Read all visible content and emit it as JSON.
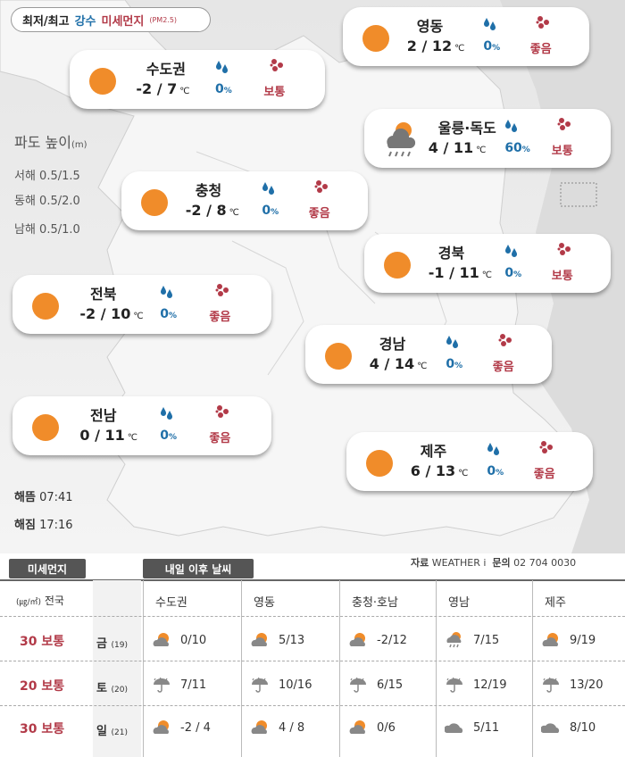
{
  "legend": {
    "temp": "최저/최고",
    "rain": "강수",
    "dust": "미세먼지",
    "pm": "(PM2.5)"
  },
  "colors": {
    "sun": "#f08c2a",
    "rain": "#1f6fa8",
    "dust": "#b23a48"
  },
  "waves": {
    "title": "파도 높이",
    "unit": "(m)",
    "west": "서해  0.5/1.5",
    "east": "동해  0.5/2.0",
    "south": "남해  0.5/1.0"
  },
  "sun_times": {
    "sunrise_label": "해뜸",
    "sunrise": "07:41",
    "sunset_label": "해짐",
    "sunset": "17:16"
  },
  "regions": [
    {
      "name": "영동",
      "low": "2",
      "high": "12",
      "rain": "0",
      "dust": "좋음",
      "icon": "sun-icon"
    },
    {
      "name": "수도권",
      "low": "-2",
      "high": "7",
      "rain": "0",
      "dust": "보통",
      "icon": "sun-icon"
    },
    {
      "name": "울릉·독도",
      "low": "4",
      "high": "11",
      "rain": "60",
      "dust": "보통",
      "icon": "cloud-rain-sun-icon"
    },
    {
      "name": "충청",
      "low": "-2",
      "high": "8",
      "rain": "0",
      "dust": "좋음",
      "icon": "sun-icon"
    },
    {
      "name": "경북",
      "low": "-1",
      "high": "11",
      "rain": "0",
      "dust": "보통",
      "icon": "sun-icon"
    },
    {
      "name": "전북",
      "low": "-2",
      "high": "10",
      "rain": "0",
      "dust": "좋음",
      "icon": "sun-icon"
    },
    {
      "name": "경남",
      "low": "4",
      "high": "14",
      "rain": "0",
      "dust": "좋음",
      "icon": "sun-icon"
    },
    {
      "name": "전남",
      "low": "0",
      "high": "11",
      "rain": "0",
      "dust": "좋음",
      "icon": "sun-icon"
    },
    {
      "name": "제주",
      "low": "6",
      "high": "13",
      "rain": "0",
      "dust": "좋음",
      "icon": "sun-icon"
    }
  ],
  "unit_symbols": {
    "celsius": "℃",
    "percent": "%",
    "slash": "/"
  },
  "bottom": {
    "dust_tab": "미세먼지",
    "week_tab": "내일 이후 날씨",
    "source_label": "자료",
    "source_name": "WEATHER i",
    "contact_label": "문의",
    "contact_number": "02 704 0030",
    "unit_head": "(㎍/㎥)",
    "nation": "전국",
    "columns": [
      "수도권",
      "영동",
      "충청·호남",
      "영남",
      "제주"
    ],
    "rows": [
      {
        "dust_value": "30",
        "dust_level": "보통",
        "day": "금",
        "date": "(19)",
        "cells": [
          {
            "temp": "0/10",
            "icon": "partly-cloudy-icon"
          },
          {
            "temp": "5/13",
            "icon": "partly-cloudy-icon"
          },
          {
            "temp": "-2/12",
            "icon": "partly-cloudy-icon"
          },
          {
            "temp": "7/15",
            "icon": "sun-cloud-rain-icon"
          },
          {
            "temp": "9/19",
            "icon": "partly-cloudy-icon"
          }
        ]
      },
      {
        "dust_value": "20",
        "dust_level": "보통",
        "day": "토",
        "date": "(20)",
        "cells": [
          {
            "temp": "7/11",
            "icon": "umbrella-rain-icon"
          },
          {
            "temp": "10/16",
            "icon": "umbrella-rain-icon"
          },
          {
            "temp": "6/15",
            "icon": "umbrella-rain-icon"
          },
          {
            "temp": "12/19",
            "icon": "umbrella-rain-icon"
          },
          {
            "temp": "13/20",
            "icon": "umbrella-rain-icon"
          }
        ]
      },
      {
        "dust_value": "30",
        "dust_level": "보통",
        "day": "일",
        "date": "(21)",
        "cells": [
          {
            "temp": "-2 / 4",
            "icon": "partly-cloudy-icon"
          },
          {
            "temp": "4 / 8",
            "icon": "partly-cloudy-icon"
          },
          {
            "temp": "0/6",
            "icon": "partly-cloudy-icon"
          },
          {
            "temp": "5/11",
            "icon": "cloud-icon"
          },
          {
            "temp": "8/10",
            "icon": "cloud-icon"
          }
        ]
      }
    ]
  }
}
